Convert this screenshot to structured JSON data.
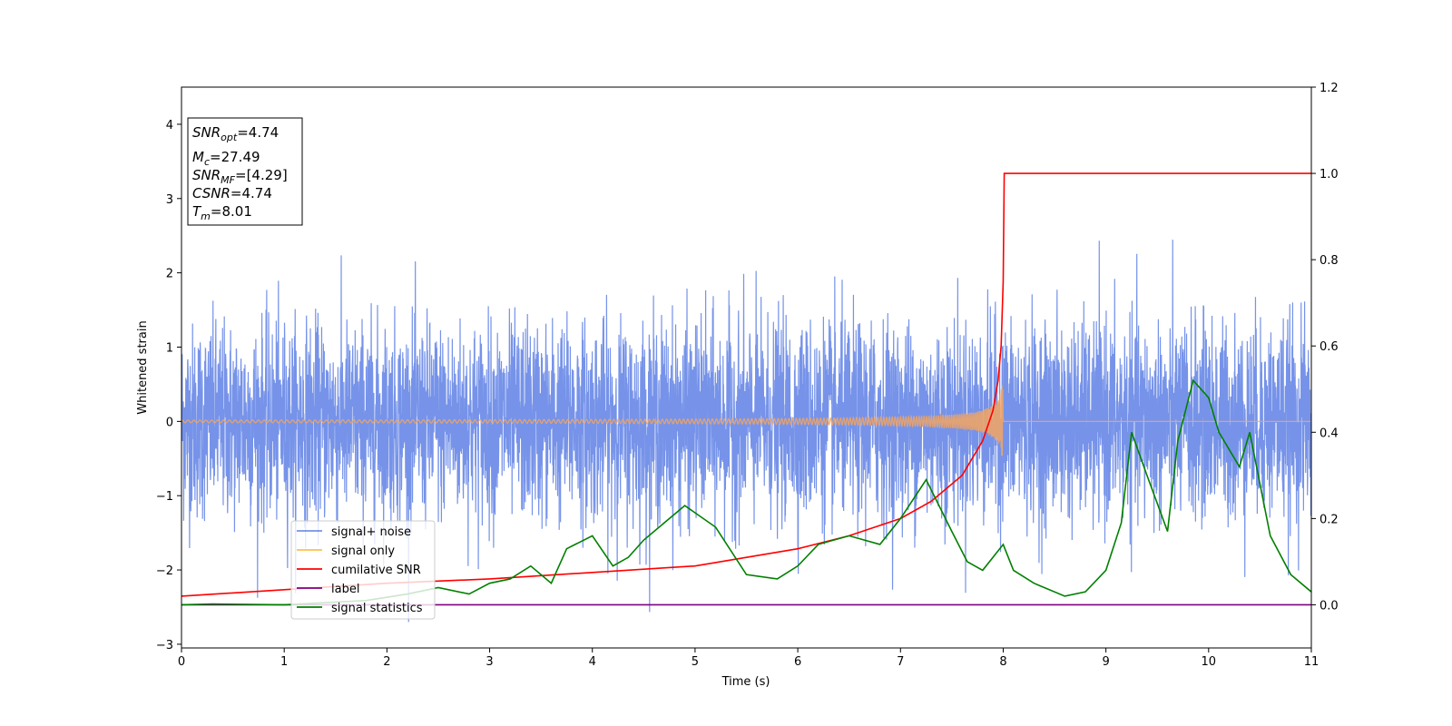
{
  "chart_data": {
    "type": "line",
    "title": "",
    "xlabel": "Time (s)",
    "ylabel": "Whitened strain",
    "xlim": [
      0,
      11
    ],
    "ylim": [
      -3.05,
      4.5
    ],
    "y2lim": [
      -0.1,
      1.2
    ],
    "x_ticks": [
      0,
      1,
      2,
      3,
      4,
      5,
      6,
      7,
      8,
      9,
      10,
      11
    ],
    "y_ticks": [
      -3,
      -2,
      -1,
      0,
      1,
      2,
      3,
      4
    ],
    "y2_ticks": [
      0.0,
      0.2,
      0.4,
      0.6,
      0.8,
      1.0,
      1.2
    ],
    "grid": false,
    "legend_position": "lower-left",
    "annotation": {
      "snr_opt": {
        "sym": "SNR",
        "sub": "opt",
        "value": "=4.74"
      },
      "mc": {
        "sym": "M",
        "sub": "c",
        "value": "=27.49"
      },
      "snr_mf": {
        "sym": "SNR",
        "sub": "MF",
        "value": "=[4.29]"
      },
      "csnr": {
        "sym": "CSNR",
        "sub": "",
        "value": "=4.74"
      },
      "tm": {
        "sym": "T",
        "sub": "m",
        "value": "=8.01"
      }
    },
    "series": [
      {
        "name": "signal+ noise",
        "color": "#4169e1",
        "axis": "left",
        "kind": "noise",
        "noise_std": 0.65,
        "min_value": -2.7,
        "max_value": 2.5
      },
      {
        "name": "signal only",
        "color": "#f4a460",
        "axis": "left",
        "kind": "chirp",
        "merger_time": 8.0,
        "peak_amplitude": 0.65
      },
      {
        "name": "cumilative SNR",
        "color": "#ff0000",
        "axis": "right",
        "x": [
          0,
          1,
          2,
          3,
          4,
          5,
          6,
          6.5,
          7,
          7.3,
          7.6,
          7.8,
          7.9,
          7.95,
          7.98,
          8.0,
          8.01,
          9,
          10,
          11
        ],
        "values": [
          0.02,
          0.035,
          0.05,
          0.06,
          0.075,
          0.09,
          0.13,
          0.16,
          0.2,
          0.24,
          0.3,
          0.38,
          0.45,
          0.52,
          0.6,
          0.75,
          1.0,
          1.0,
          1.0,
          1.0
        ]
      },
      {
        "name": "label",
        "color": "#800080",
        "axis": "right",
        "x": [
          0,
          11
        ],
        "values": [
          0.0,
          0.0
        ]
      },
      {
        "name": "signal statistics",
        "color": "#008000",
        "axis": "right",
        "x": [
          0,
          0.3,
          1.0,
          1.8,
          2.2,
          2.5,
          2.8,
          3.0,
          3.2,
          3.4,
          3.6,
          3.75,
          4.0,
          4.2,
          4.35,
          4.5,
          4.7,
          4.9,
          5.2,
          5.5,
          5.8,
          6.0,
          6.2,
          6.5,
          6.8,
          7.0,
          7.25,
          7.5,
          7.65,
          7.8,
          8.0,
          8.1,
          8.3,
          8.6,
          8.8,
          9.0,
          9.15,
          9.25,
          9.4,
          9.6,
          9.7,
          9.85,
          10.0,
          10.1,
          10.3,
          10.4,
          10.6,
          10.8,
          11.0
        ],
        "values": [
          0.0,
          0.002,
          0.0,
          0.01,
          0.025,
          0.04,
          0.025,
          0.05,
          0.06,
          0.09,
          0.05,
          0.13,
          0.16,
          0.09,
          0.11,
          0.15,
          0.19,
          0.23,
          0.18,
          0.07,
          0.06,
          0.09,
          0.14,
          0.16,
          0.14,
          0.2,
          0.29,
          0.17,
          0.1,
          0.08,
          0.14,
          0.08,
          0.05,
          0.02,
          0.03,
          0.08,
          0.19,
          0.4,
          0.3,
          0.17,
          0.38,
          0.52,
          0.48,
          0.4,
          0.32,
          0.4,
          0.16,
          0.07,
          0.03
        ]
      }
    ]
  }
}
